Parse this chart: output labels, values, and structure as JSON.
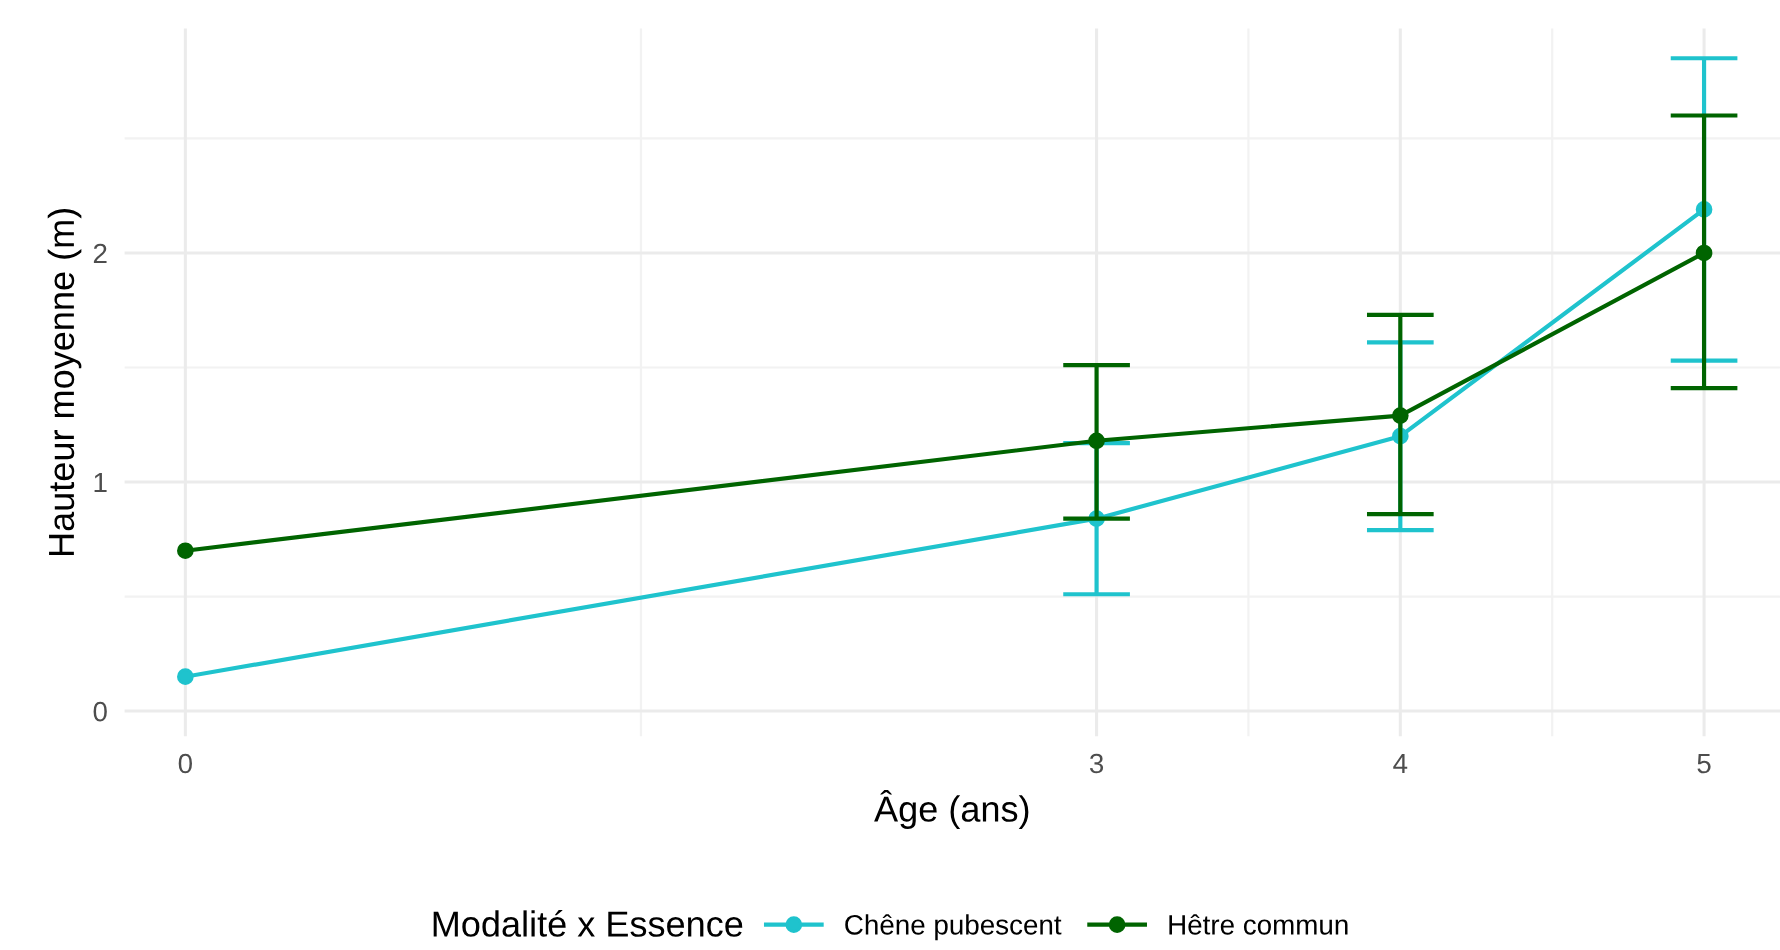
{
  "chart_data": {
    "type": "line",
    "xlabel": "Âge (ans)",
    "ylabel": "Hauteur moyenne (m)",
    "legend_title": "Modalité x Essence",
    "x": [
      0,
      3,
      4,
      5
    ],
    "series": [
      {
        "name": "Chêne pubescent",
        "color": "#1fc3cd",
        "values": [
          0.15,
          0.84,
          1.2,
          2.19
        ],
        "errors": [
          null,
          [
            0.51,
            1.17
          ],
          [
            0.79,
            1.61
          ],
          [
            1.53,
            2.85
          ]
        ]
      },
      {
        "name": "Hêtre commun",
        "color": "#006400",
        "values": [
          0.7,
          1.18,
          1.29,
          2.0
        ],
        "errors": [
          null,
          [
            0.84,
            1.51
          ],
          [
            0.86,
            1.73
          ],
          [
            1.41,
            2.6
          ]
        ]
      }
    ],
    "xlim": [
      -0.2,
      5.25
    ],
    "ylim": [
      -0.11,
      2.98
    ],
    "xticks": [
      0,
      3,
      4,
      5
    ],
    "yticks": [
      0,
      1,
      2
    ],
    "grid": true,
    "legend": "bottom",
    "marker": "circle",
    "line_style": "solid"
  }
}
